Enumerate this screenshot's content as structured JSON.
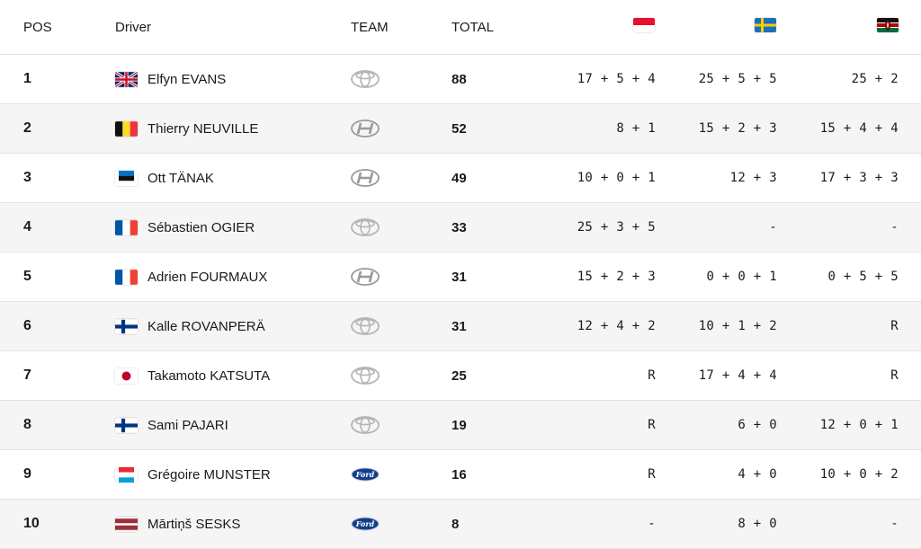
{
  "header": {
    "pos": "POS",
    "driver": "Driver",
    "team": "TEAM",
    "total": "TOTAL",
    "events": [
      {
        "flag": "monaco-flag-icon"
      },
      {
        "flag": "sweden-flag-icon"
      },
      {
        "flag": "kenya-flag-icon"
      }
    ]
  },
  "rows": [
    {
      "pos": "1",
      "flag": "uk-flag-icon",
      "driver": "Elfyn EVANS",
      "team": "toyota-logo-icon",
      "total": "88",
      "r1": "17 + 5 + 4",
      "r2": "25 + 5 + 5",
      "r3": "25 + 2"
    },
    {
      "pos": "2",
      "flag": "belgium-flag-icon",
      "driver": "Thierry NEUVILLE",
      "team": "hyundai-logo-icon",
      "total": "52",
      "r1": "8 + 1",
      "r2": "15 + 2 + 3",
      "r3": "15 + 4 + 4"
    },
    {
      "pos": "3",
      "flag": "estonia-flag-icon",
      "driver": "Ott TÄNAK",
      "team": "hyundai-logo-icon",
      "total": "49",
      "r1": "10 + 0 + 1",
      "r2": "12 + 3",
      "r3": "17 + 3 + 3"
    },
    {
      "pos": "4",
      "flag": "france-flag-icon",
      "driver": "Sébastien OGIER",
      "team": "toyota-logo-icon",
      "total": "33",
      "r1": "25 + 3 + 5",
      "r2": "-",
      "r3": "-"
    },
    {
      "pos": "5",
      "flag": "france-flag-icon",
      "driver": "Adrien FOURMAUX",
      "team": "hyundai-logo-icon",
      "total": "31",
      "r1": "15 + 2 + 3",
      "r2": "0 + 0 + 1",
      "r3": "0 + 5 + 5"
    },
    {
      "pos": "6",
      "flag": "finland-flag-icon",
      "driver": "Kalle ROVANPERÄ",
      "team": "toyota-logo-icon",
      "total": "31",
      "r1": "12 + 4 + 2",
      "r2": "10 + 1 + 2",
      "r3": "R"
    },
    {
      "pos": "7",
      "flag": "japan-flag-icon",
      "driver": "Takamoto KATSUTA",
      "team": "toyota-logo-icon",
      "total": "25",
      "r1": "R",
      "r2": "17 + 4 + 4",
      "r3": "R"
    },
    {
      "pos": "8",
      "flag": "finland-flag-icon",
      "driver": "Sami PAJARI",
      "team": "toyota-logo-icon",
      "total": "19",
      "r1": "R",
      "r2": "6 + 0",
      "r3": "12 + 0 + 1"
    },
    {
      "pos": "9",
      "flag": "luxembourg-flag-icon",
      "driver": "Grégoire MUNSTER",
      "team": "ford-logo-icon",
      "total": "16",
      "r1": "R",
      "r2": "4 + 0",
      "r3": "10 + 0 + 2"
    },
    {
      "pos": "10",
      "flag": "latvia-flag-icon",
      "driver": "Mārtiņš SESKS",
      "team": "ford-logo-icon",
      "total": "8",
      "r1": "-",
      "r2": "8 + 0",
      "r3": "-"
    }
  ]
}
